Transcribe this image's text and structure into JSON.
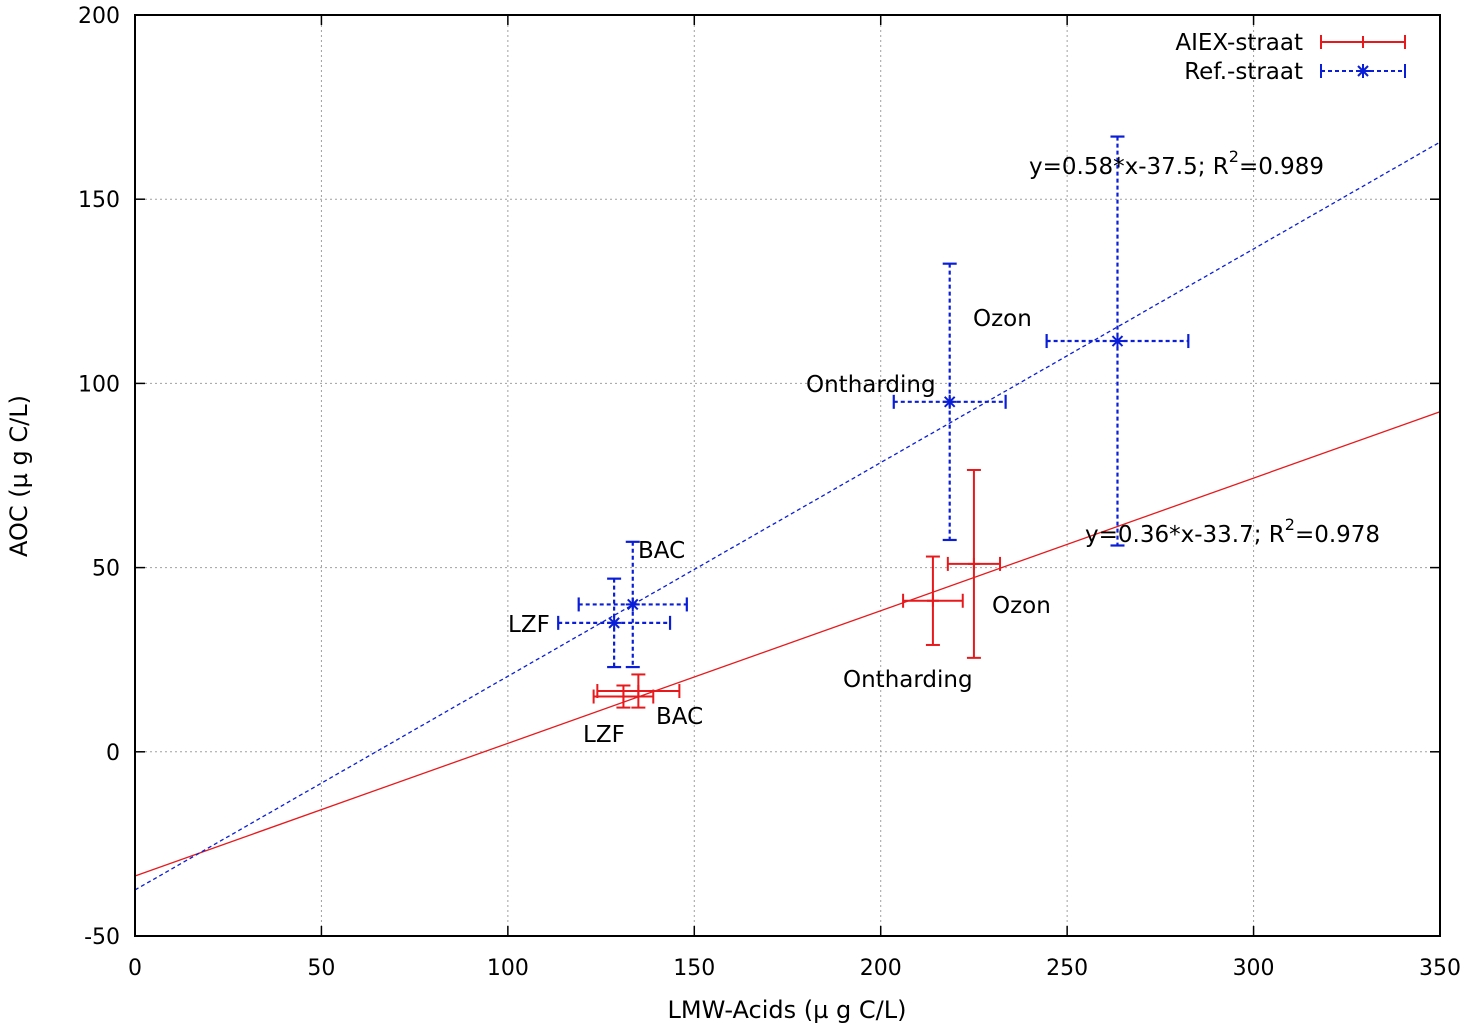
{
  "chart_data": {
    "type": "scatter",
    "xlabel": "LMW-Acids (µ g C/L)",
    "ylabel": "AOC (µ g C/L)",
    "xlim": [
      0,
      350
    ],
    "ylim": [
      -50,
      200
    ],
    "x_ticks": [
      0,
      50,
      100,
      150,
      200,
      250,
      300,
      350
    ],
    "y_ticks": [
      -50,
      0,
      50,
      100,
      150,
      200
    ],
    "x_tick_labels": [
      "0",
      "50",
      "100",
      "150",
      "200",
      "250",
      "300",
      "350"
    ],
    "y_tick_labels": [
      "-50",
      "0",
      "50",
      "100",
      "150",
      "200"
    ],
    "grid": true,
    "legend_position": "top-right",
    "series": [
      {
        "name": "AIEX-straat",
        "color": "#e8191c",
        "line_style": "solid",
        "marker": "plus",
        "points": [
          {
            "label": "LZF",
            "x": 131,
            "y": 15,
            "xerr": 8,
            "yerr": 3
          },
          {
            "label": "BAC",
            "x": 135,
            "y": 16.5,
            "xerr": 11,
            "yerr": 4.5
          },
          {
            "label": "Ontharding",
            "x": 214,
            "y": 41,
            "xerr": 8,
            "yerr": 12
          },
          {
            "label": "Ozon",
            "x": 225,
            "y": 51,
            "xerr": 7,
            "yerr": 25.5
          }
        ],
        "fit": {
          "slope": 0.36,
          "intercept": -33.7,
          "equation": "y=0.36*x-33.7; R",
          "r2": "=0.978",
          "superscript": "2"
        }
      },
      {
        "name": "Ref.-straat",
        "color": "#0a1ed8",
        "line_style": "dashed",
        "marker": "star",
        "points": [
          {
            "label": "LZF",
            "x": 128.5,
            "y": 35,
            "xerr": 15,
            "yerr": 12
          },
          {
            "label": "BAC",
            "x": 133.5,
            "y": 40,
            "xerr": 14.5,
            "yerr": 17
          },
          {
            "label": "Ontharding",
            "x": 218.5,
            "y": 95,
            "xerr": 15,
            "yerr": 37.5
          },
          {
            "label": "Ozon",
            "x": 263.5,
            "y": 111.5,
            "xerr": 19,
            "yerr": 55.5
          }
        ],
        "fit": {
          "slope": 0.58,
          "intercept": -37.5,
          "equation": "y=0.58*x-37.5; R",
          "r2": "=0.989",
          "superscript": "2"
        }
      }
    ]
  }
}
